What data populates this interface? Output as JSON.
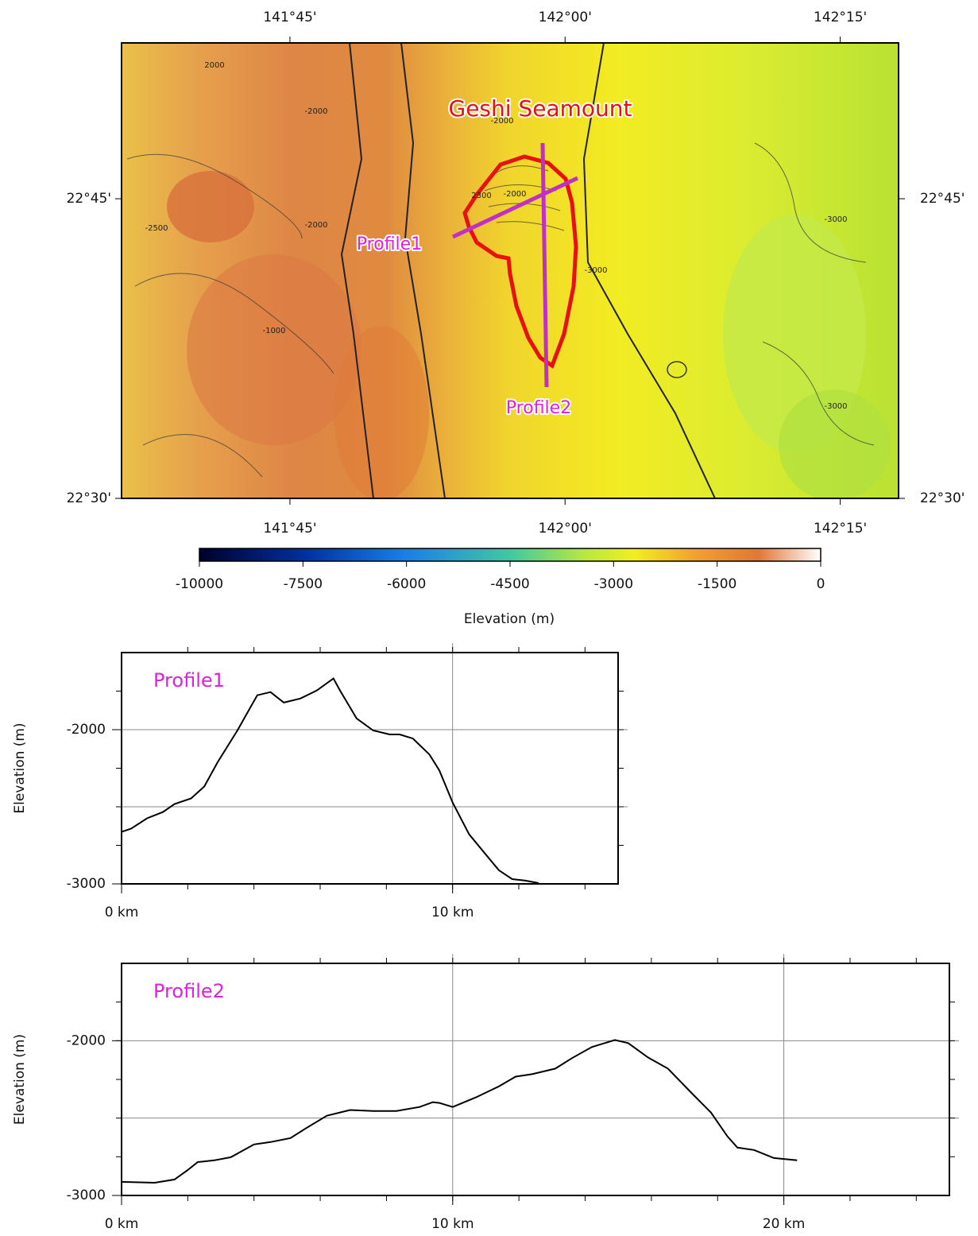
{
  "map": {
    "title": "Geshi Seamount",
    "profile_labels": [
      "Profile1",
      "Profile2"
    ],
    "xlim": [
      141.597,
      142.303
    ],
    "ylim": [
      22.5,
      22.88
    ],
    "xticks": [
      {
        "value": 141.75,
        "label": "141°45'"
      },
      {
        "value": 142.0,
        "label": "142°00'"
      },
      {
        "value": 142.25,
        "label": "142°15'"
      }
    ],
    "yticks": [
      {
        "value": 22.5,
        "label": "22°30'"
      },
      {
        "value": 22.75,
        "label": "22°45'"
      }
    ],
    "contour_labels": [
      "2000",
      "-2000",
      "-2000",
      "-2500",
      "-2000",
      "-1000",
      "2300",
      "-2000",
      "-3000",
      "-3000",
      "-3000"
    ]
  },
  "colorbar": {
    "label": "Elevation (m)",
    "range": [
      -10000,
      0
    ],
    "ticks": [
      -10000,
      -7500,
      -6000,
      -4500,
      -3000,
      -1500,
      0
    ]
  },
  "chart_data": [
    {
      "type": "line",
      "title": "Profile1",
      "title_color": "#e020e0",
      "ylabel": "Elevation (m)",
      "color": "#000000",
      "x": [
        0,
        0.29,
        0.77,
        1.25,
        1.6,
        2.1,
        2.5,
        2.9,
        3.5,
        4.1,
        4.5,
        4.9,
        5.4,
        5.9,
        6.4,
        6.6,
        7.1,
        7.6,
        8.1,
        8.4,
        8.8,
        9.3,
        9.6,
        10.0,
        10.5,
        11.0,
        11.4,
        11.8,
        12.2,
        12.6
      ],
      "values": [
        -2663,
        -2642,
        -2575,
        -2534,
        -2482,
        -2446,
        -2368,
        -2212,
        -2005,
        -1777,
        -1756,
        -1824,
        -1798,
        -1746,
        -1668,
        -1746,
        -1927,
        -2005,
        -2031,
        -2031,
        -2057,
        -2161,
        -2264,
        -2472,
        -2679,
        -2808,
        -2912,
        -2969,
        -2979,
        -2995
      ],
      "xlim": [
        0,
        15
      ],
      "ylim": [
        -3000,
        -1500
      ],
      "xticks": [
        {
          "value": 0,
          "label": "0 km"
        },
        {
          "value": 10,
          "label": "10 km"
        }
      ],
      "yticks": [
        -3000,
        -2000
      ],
      "xgrid": [
        10
      ],
      "ygrid": [
        -2500,
        -2000
      ],
      "xminor": 2,
      "yminor": 250
    },
    {
      "type": "line",
      "title": "Profile2",
      "title_color": "#e020e0",
      "ylabel": "Elevation (m)",
      "color": "#000000",
      "x": [
        0,
        1.0,
        1.6,
        2.0,
        2.3,
        2.8,
        3.3,
        4.0,
        4.5,
        5.1,
        5.6,
        6.2,
        6.9,
        7.6,
        8.3,
        9.0,
        9.4,
        9.6,
        10.0,
        10.7,
        11.4,
        11.9,
        12.4,
        13.1,
        13.6,
        14.2,
        14.9,
        15.3,
        15.9,
        16.5,
        17.2,
        17.8,
        18.3,
        18.6,
        19.1,
        19.7,
        20.4
      ],
      "values": [
        -2912,
        -2918,
        -2897,
        -2835,
        -2784,
        -2773,
        -2753,
        -2670,
        -2655,
        -2629,
        -2562,
        -2485,
        -2448,
        -2454,
        -2454,
        -2428,
        -2397,
        -2402,
        -2428,
        -2366,
        -2294,
        -2232,
        -2216,
        -2180,
        -2113,
        -2041,
        -1995,
        -2015,
        -2108,
        -2180,
        -2335,
        -2464,
        -2619,
        -2691,
        -2706,
        -2758,
        -2773
      ],
      "xlim": [
        0,
        25
      ],
      "ylim": [
        -3000,
        -1500
      ],
      "xticks": [
        {
          "value": 0,
          "label": "0 km"
        },
        {
          "value": 10,
          "label": "10 km"
        },
        {
          "value": 20,
          "label": "20 km"
        }
      ],
      "yticks": [
        -3000,
        -2000
      ],
      "xgrid": [
        10,
        20
      ],
      "ygrid": [
        -2500,
        -2000
      ],
      "xminor": 2,
      "yminor": 250
    }
  ]
}
